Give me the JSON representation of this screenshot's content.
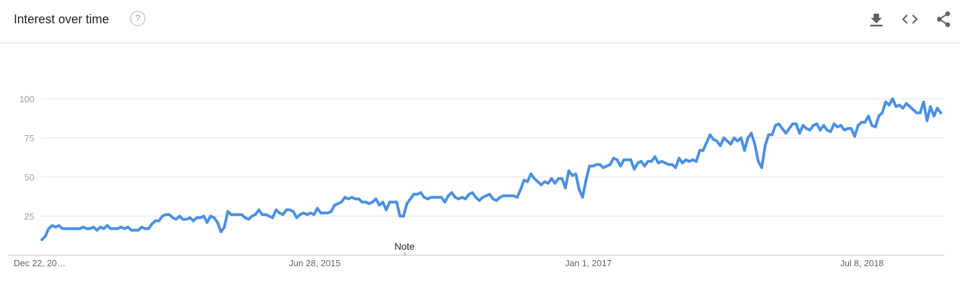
{
  "header": {
    "title": "Interest over time",
    "help_glyph": "?",
    "tools": [
      "download-icon",
      "embed-icon",
      "share-icon"
    ]
  },
  "colors": {
    "line": "#4a90e2",
    "grid": "#e0e0e0",
    "axis": "#bdbdbd"
  },
  "note": {
    "label": "Note"
  },
  "chart_data": {
    "type": "line",
    "title": "Interest over time",
    "xlabel": "",
    "ylabel": "",
    "ylim": [
      0,
      100
    ],
    "yticks": [
      25,
      50,
      75,
      100
    ],
    "grid": true,
    "x_tick_labels": [
      "Dec 22, 20…",
      "Jun 28, 2015",
      "Jan 1, 2017",
      "Jul 8, 2018"
    ],
    "series": [
      {
        "values": [
          10,
          12,
          17,
          19,
          18,
          19,
          17,
          17,
          17,
          17,
          17,
          17,
          18,
          17,
          17,
          18,
          16,
          18,
          17,
          19,
          17,
          17,
          17,
          18,
          17,
          18,
          16,
          16,
          16,
          18,
          17,
          17,
          20,
          22,
          22,
          25,
          26,
          26,
          24,
          23,
          25,
          23,
          23,
          24,
          22,
          24,
          24,
          25,
          21,
          25,
          24,
          21,
          15,
          18,
          28,
          26,
          26,
          26,
          26,
          24,
          23,
          25,
          26,
          29,
          26,
          26,
          25,
          24,
          29,
          27,
          26,
          29,
          29,
          28,
          24,
          26,
          27,
          26,
          27,
          26,
          30,
          27,
          27,
          27,
          28,
          32,
          33,
          34,
          37,
          36,
          37,
          36,
          36,
          34,
          34,
          33,
          34,
          36,
          32,
          34,
          29,
          34,
          34,
          34,
          25,
          25,
          33,
          36,
          39,
          39,
          40,
          37,
          36,
          37,
          37,
          37,
          37,
          34,
          38,
          40,
          37,
          36,
          37,
          36,
          39,
          40,
          37,
          35,
          37,
          38,
          39,
          36,
          35,
          37,
          38,
          38,
          38,
          38,
          37,
          42,
          48,
          47,
          52,
          49,
          47,
          45,
          47,
          46,
          49,
          46,
          49,
          49,
          43,
          54,
          51,
          52,
          42,
          37,
          48,
          57,
          57,
          58,
          58,
          56,
          57,
          58,
          62,
          61,
          57,
          61,
          61,
          61,
          55,
          59,
          60,
          57,
          60,
          60,
          63,
          59,
          60,
          59,
          58,
          58,
          56,
          62,
          59,
          61,
          60,
          61,
          60,
          67,
          67,
          72,
          77,
          74,
          73,
          70,
          75,
          73,
          71,
          75,
          73,
          75,
          67,
          75,
          78,
          71,
          60,
          56,
          70,
          77,
          77,
          83,
          84,
          81,
          78,
          81,
          84,
          84,
          78,
          83,
          81,
          80,
          83,
          84,
          80,
          83,
          80,
          79,
          84,
          82,
          83,
          80,
          81,
          81,
          76,
          83,
          85,
          85,
          89,
          83,
          82,
          89,
          91,
          98,
          96,
          100,
          95,
          96,
          94,
          97,
          95,
          93,
          91,
          91,
          98,
          86,
          95,
          89,
          94,
          91
        ]
      }
    ]
  }
}
